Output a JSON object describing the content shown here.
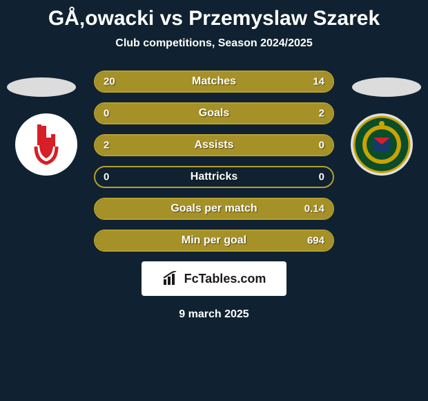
{
  "header": {
    "title": "GÅ‚owacki vs Przemyslaw Szarek",
    "subtitle": "Club competitions, Season 2024/2025"
  },
  "colors": {
    "accent": "#a59127",
    "accent_border": "#b5a02e",
    "background": "#102231",
    "oval_left": "#dcdcdc",
    "oval_right": "#dcdcdc",
    "badge_left_bg": "#ffffff",
    "badge_right_bg": "#e0e0e0",
    "badge_left_fg": "#d61f26",
    "badge_right_inner": "#0a4d2a",
    "badge_right_ring": "#c9a300"
  },
  "stats": {
    "rows": [
      {
        "label": "Matches",
        "left": "20",
        "right": "14",
        "fill_left_pct": 100,
        "fill_right_pct": 0
      },
      {
        "label": "Goals",
        "left": "0",
        "right": "2",
        "fill_left_pct": 0,
        "fill_right_pct": 100
      },
      {
        "label": "Assists",
        "left": "2",
        "right": "0",
        "fill_left_pct": 100,
        "fill_right_pct": 0
      },
      {
        "label": "Hattricks",
        "left": "0",
        "right": "0",
        "fill_left_pct": 0,
        "fill_right_pct": 0
      },
      {
        "label": "Goals per match",
        "left": "",
        "right": "0.14",
        "fill_left_pct": 0,
        "fill_right_pct": 100
      },
      {
        "label": "Min per goal",
        "left": "",
        "right": "694",
        "fill_left_pct": 0,
        "fill_right_pct": 100
      }
    ]
  },
  "brand": {
    "text": "FcTables.com"
  },
  "footer": {
    "date": "9 march 2025"
  }
}
